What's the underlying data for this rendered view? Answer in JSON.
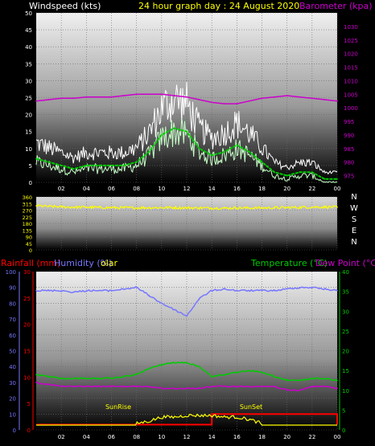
{
  "header": {
    "left_label": "Windspeed (kts)",
    "title": "24 hour graph day : 24 August 2020",
    "right_label": "Barometer (kpa)"
  },
  "bottom_header": {
    "rainfall": "Rainfall (mm)",
    "humidity": "Humidity (%)",
    "solar": "olar",
    "temperature": "Temperature (°C)",
    "dewpoint": "Dew Point (°C)"
  },
  "time_ticks": [
    "02",
    "04",
    "06",
    "08",
    "10",
    "12",
    "14",
    "16",
    "18",
    "20",
    "22",
    "00"
  ],
  "colors": {
    "gust": "#ffffff",
    "avg_wind": "#c8ffc8",
    "wind_mean": "#00cc00",
    "baro": "#cc00cc",
    "direction": "#ffff00",
    "rain": "#ff0000",
    "humidity": "#7777ff",
    "temperature": "#00cc00",
    "dewpoint": "#cc00cc",
    "solar": "#ffff00"
  },
  "chart_data": [
    {
      "type": "line",
      "title": "24 hour graph day : 24 August 2020",
      "ylabel": "Windspeed (kts)",
      "y2label": "Barometer (kpa)",
      "ylim": [
        0,
        50
      ],
      "y_ticks": [
        "0",
        "5",
        "10",
        "15",
        "20",
        "25",
        "30",
        "35",
        "40",
        "45",
        "50"
      ],
      "y2lim": [
        972.5,
        1035
      ],
      "y2_ticks": [
        "975",
        "980",
        "985",
        "990",
        "995",
        "1000",
        "1005",
        "1010",
        "1015",
        "1020",
        "1025",
        "1030"
      ],
      "hours": [
        0,
        1,
        2,
        3,
        4,
        5,
        6,
        7,
        8,
        9,
        10,
        11,
        12,
        13,
        14,
        15,
        16,
        17,
        18,
        19,
        20,
        21,
        22,
        23,
        24
      ],
      "series": [
        {
          "name": "Windspeed",
          "values": [
            7,
            6,
            5,
            4,
            5,
            5,
            5,
            5,
            6,
            9,
            14,
            16,
            15,
            10,
            8,
            9,
            11,
            9,
            6,
            3,
            2,
            3,
            3,
            1,
            1
          ]
        },
        {
          "name": "Barometer",
          "values": [
            1002.5,
            1003,
            1003.5,
            1003.5,
            1004,
            1004,
            1004,
            1004.5,
            1005,
            1005,
            1005,
            1004.5,
            1004,
            1003,
            1002,
            1001.5,
            1001.5,
            1002.5,
            1003.5,
            1004,
            1004.5,
            1004,
            1003.5,
            1003,
            1002.5
          ]
        }
      ]
    },
    {
      "type": "line",
      "ylim": [
        0,
        360
      ],
      "y_ticks": [
        "0",
        "45",
        "90",
        "135",
        "180",
        "225",
        "270",
        "315",
        "360"
      ],
      "compass": [
        "N",
        "W",
        "S",
        "E",
        "N"
      ],
      "series": [
        {
          "name": "Wind direction",
          "values": [
            300,
            295,
            292,
            290,
            290,
            288,
            287,
            286,
            286,
            287,
            287,
            287,
            286,
            285,
            284,
            284,
            285,
            285,
            285,
            286,
            287,
            289,
            291,
            292,
            290
          ]
        }
      ]
    },
    {
      "type": "line",
      "y_left_humidity": [
        "0",
        "10",
        "20",
        "30",
        "40",
        "50",
        "60",
        "70",
        "80",
        "90",
        "100"
      ],
      "y_left_rain": [
        "0",
        "5",
        "10",
        "15",
        "20",
        "25",
        "30"
      ],
      "y_right_temp": [
        "0",
        "5",
        "10",
        "15",
        "20",
        "25",
        "30",
        "35",
        "40"
      ],
      "series": [
        {
          "name": "Humidity (%)",
          "values": [
            88,
            88,
            88,
            87,
            88,
            88,
            88,
            89,
            90,
            85,
            80,
            76,
            72,
            83,
            88,
            89,
            88,
            88,
            88,
            88,
            89,
            90,
            90,
            89,
            88
          ]
        },
        {
          "name": "Temperature (°C)",
          "values": [
            14,
            13.5,
            13,
            13,
            13,
            13,
            13,
            13.5,
            14,
            15.5,
            16.5,
            17,
            17,
            16,
            13.5,
            14,
            14.5,
            15,
            14.5,
            13.5,
            12.5,
            12.5,
            13,
            13,
            12.5
          ]
        },
        {
          "name": "Dew Point (°C)",
          "values": [
            12,
            11.5,
            11,
            11,
            11,
            11,
            11,
            11,
            11,
            11,
            10.5,
            10.5,
            10.5,
            10.5,
            11,
            11,
            11,
            11,
            11,
            11,
            10,
            10,
            11,
            11,
            10.5
          ]
        },
        {
          "name": "Rainfall (mm)",
          "values": [
            1,
            1,
            1,
            1,
            1,
            1,
            1,
            1,
            1,
            1,
            1,
            1,
            1,
            1,
            3,
            3,
            3,
            3,
            3,
            3,
            3,
            3,
            3,
            3,
            1
          ]
        },
        {
          "name": "Solar",
          "values": [
            0,
            0,
            0,
            0,
            0,
            0,
            0,
            0,
            0,
            0.3,
            0.8,
            0.8,
            1,
            1,
            1,
            0.8,
            0.8,
            0.5,
            0,
            0,
            0,
            0,
            0,
            0,
            0
          ]
        }
      ],
      "annotations": [
        "SunRise",
        "SunSet"
      ]
    }
  ]
}
